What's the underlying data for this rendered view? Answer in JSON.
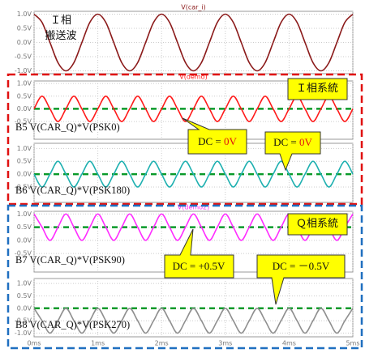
{
  "chart_data": [
    {
      "type": "line",
      "title": "V(car_i)",
      "x": [
        0,
        0.125,
        0.25,
        0.375,
        0.5,
        0.625,
        0.75,
        0.875,
        1,
        1.125,
        1.25,
        1.375,
        1.5,
        1.625,
        1.75,
        1.875,
        2,
        2.125,
        2.25,
        2.375,
        2.5,
        2.625,
        2.75,
        2.875,
        3,
        3.125,
        3.25,
        3.375,
        3.5,
        3.625,
        3.75,
        3.875,
        4,
        4.125,
        4.25,
        4.375,
        4.5,
        4.625,
        4.75,
        4.875,
        5
      ],
      "series": [
        {
          "color": "#8b1a1a",
          "values": [
            1,
            0.71,
            0,
            -0.71,
            -1,
            -0.71,
            0,
            0.71,
            1,
            0.71,
            0,
            -0.71,
            -1,
            -0.71,
            0,
            0.71,
            1,
            0.71,
            0,
            -0.71,
            -1,
            -0.71,
            0,
            0.71,
            1,
            0.71,
            0,
            -0.71,
            -1,
            -0.71,
            0,
            0.71,
            1,
            0.71,
            0,
            -0.71,
            -1,
            -0.71,
            0,
            0.71,
            1
          ]
        }
      ],
      "xlim": [
        0,
        5
      ],
      "ylim": [
        -1.1,
        1.1
      ],
      "yticks": [
        {
          "value": 1,
          "label": "1.0V"
        },
        {
          "value": 0.5,
          "label": "0.5V"
        },
        {
          "value": 0,
          "label": "0.0V"
        },
        {
          "value": -0.5,
          "label": "-0.5V"
        },
        {
          "value": -1,
          "label": "-1.0V"
        }
      ],
      "grid": true
    },
    {
      "type": "line",
      "title": "V(demo)",
      "x": [
        0,
        0.125,
        0.25,
        0.375,
        0.5,
        0.625,
        0.75,
        0.875,
        1,
        1.125,
        1.25,
        1.375,
        1.5,
        1.625,
        1.75,
        1.875,
        2,
        2.125,
        2.25,
        2.375,
        2.5,
        2.625,
        2.75,
        2.875,
        3,
        3.125,
        3.25,
        3.375,
        3.5,
        3.625,
        3.75,
        3.875,
        4,
        4.125,
        4.25,
        4.375,
        4.5,
        4.625,
        4.75,
        4.875,
        5
      ],
      "series": [
        {
          "name": "B5 V(CAR_Q)*V(PSK0)",
          "color": "#ff1a1a",
          "values": [
            0,
            0.5,
            0,
            -0.5,
            0,
            0.5,
            0,
            -0.5,
            0,
            0.5,
            0,
            -0.5,
            0,
            0.5,
            0,
            -0.5,
            0,
            0.5,
            0,
            -0.5,
            0,
            0.5,
            0,
            -0.5,
            0,
            0.5,
            0,
            -0.5,
            0,
            0.5,
            0,
            -0.5,
            0,
            0.5,
            0,
            -0.5,
            0,
            0.5,
            0,
            -0.5,
            0
          ]
        }
      ],
      "xlim": [
        0,
        5
      ],
      "ylim": [
        -1.2,
        1.1
      ],
      "yticks": [
        {
          "value": 1,
          "label": "1.0V"
        },
        {
          "value": 0.5,
          "label": "0.5V"
        },
        {
          "value": 0,
          "label": "0.0V"
        },
        {
          "value": -0.5,
          "label": "-0.5V"
        }
      ],
      "grid": true,
      "reference_line": {
        "value": 0,
        "color": "#0a9a2a"
      }
    },
    {
      "type": "line",
      "x": [
        0,
        0.125,
        0.25,
        0.375,
        0.5,
        0.625,
        0.75,
        0.875,
        1,
        1.125,
        1.25,
        1.375,
        1.5,
        1.625,
        1.75,
        1.875,
        2,
        2.125,
        2.25,
        2.375,
        2.5,
        2.625,
        2.75,
        2.875,
        3,
        3.125,
        3.25,
        3.375,
        3.5,
        3.625,
        3.75,
        3.875,
        4,
        4.125,
        4.25,
        4.375,
        4.5,
        4.625,
        4.75,
        4.875,
        5
      ],
      "series": [
        {
          "name": "B6 V(CAR_Q)*V(PSK180)",
          "color": "#1fb0b0",
          "values": [
            0,
            -0.5,
            0,
            0.5,
            0,
            -0.5,
            0,
            0.5,
            0,
            -0.5,
            0,
            0.5,
            0,
            -0.5,
            0,
            0.5,
            0,
            -0.5,
            0,
            0.5,
            0,
            -0.5,
            0,
            0.5,
            0,
            -0.5,
            0,
            0.5,
            0,
            -0.5,
            0,
            0.5,
            0,
            -0.5,
            0,
            0.5,
            0,
            -0.5,
            0,
            0.5,
            0
          ]
        }
      ],
      "xlim": [
        0,
        5
      ],
      "ylim": [
        -1.1,
        1.2
      ],
      "yticks": [
        {
          "value": 1,
          "label": "1.0V"
        },
        {
          "value": 0.5,
          "label": "0.5V"
        },
        {
          "value": 0,
          "label": "0.0V"
        },
        {
          "value": -0.5,
          "label": "-0.5V"
        }
      ],
      "grid": true,
      "reference_line": {
        "value": 0,
        "color": "#0a9a2a"
      }
    },
    {
      "type": "line",
      "title": "V(demo2)",
      "x": [
        0,
        0.125,
        0.25,
        0.375,
        0.5,
        0.625,
        0.75,
        0.875,
        1,
        1.125,
        1.25,
        1.375,
        1.5,
        1.625,
        1.75,
        1.875,
        2,
        2.125,
        2.25,
        2.375,
        2.5,
        2.625,
        2.75,
        2.875,
        3,
        3.125,
        3.25,
        3.375,
        3.5,
        3.625,
        3.75,
        3.875,
        4,
        4.125,
        4.25,
        4.375,
        4.5,
        4.625,
        4.75,
        4.875,
        5
      ],
      "series": [
        {
          "name": "B7 V(CAR_Q)*V(PSK90)",
          "color": "#ff2cff",
          "values": [
            1,
            0.5,
            0,
            0.5,
            1,
            0.5,
            0,
            0.5,
            1,
            0.5,
            0,
            0.5,
            1,
            0.5,
            0,
            0.5,
            1,
            0.5,
            0,
            0.5,
            1,
            0.5,
            0,
            0.5,
            1,
            0.5,
            0,
            0.5,
            1,
            0.5,
            0,
            0.5,
            1,
            0.5,
            0,
            0.5,
            1,
            0.5,
            0,
            0.5,
            1
          ]
        }
      ],
      "xlim": [
        0,
        5
      ],
      "ylim": [
        -1.2,
        1.1
      ],
      "yticks": [
        {
          "value": 1,
          "label": "1.0V"
        },
        {
          "value": 0.5,
          "label": "0.5V"
        },
        {
          "value": 0,
          "label": "0.0V"
        },
        {
          "value": -0.5,
          "label": "-0.5V"
        }
      ],
      "grid": true,
      "reference_line": {
        "value": 0.5,
        "color": "#0a9a2a"
      }
    },
    {
      "type": "line",
      "x": [
        0,
        0.125,
        0.25,
        0.375,
        0.5,
        0.625,
        0.75,
        0.875,
        1,
        1.125,
        1.25,
        1.375,
        1.5,
        1.625,
        1.75,
        1.875,
        2,
        2.125,
        2.25,
        2.375,
        2.5,
        2.625,
        2.75,
        2.875,
        3,
        3.125,
        3.25,
        3.375,
        3.5,
        3.625,
        3.75,
        3.875,
        4,
        4.125,
        4.25,
        4.375,
        4.5,
        4.625,
        4.75,
        4.875,
        5
      ],
      "series": [
        {
          "name": "B8 V(CAR_Q)*V(PSK270)",
          "color": "#8f8f8f",
          "values": [
            0,
            -0.5,
            -1,
            -0.5,
            0,
            -0.5,
            -1,
            -0.5,
            0,
            -0.5,
            -1,
            -0.5,
            0,
            -0.5,
            -1,
            -0.5,
            0,
            -0.5,
            -1,
            -0.5,
            0,
            -0.5,
            -1,
            -0.5,
            0,
            -0.5,
            -1,
            -0.5,
            0,
            -0.5,
            -1,
            -0.5,
            0,
            -0.5,
            -1,
            -0.5,
            0,
            -0.5,
            -1,
            -0.5,
            0
          ]
        }
      ],
      "xlim": [
        0,
        5
      ],
      "ylim": [
        -1.15,
        1.2
      ],
      "xticks": [
        {
          "value": 0,
          "label": "0ms"
        },
        {
          "value": 1,
          "label": "1ms"
        },
        {
          "value": 2,
          "label": "2ms"
        },
        {
          "value": 3,
          "label": "3ms"
        },
        {
          "value": 4,
          "label": "4ms"
        },
        {
          "value": 5,
          "label": "5ms"
        }
      ],
      "yticks": [
        {
          "value": 1,
          "label": "1.0V"
        },
        {
          "value": 0.5,
          "label": "0.5V"
        },
        {
          "value": 0,
          "label": "0.0V"
        },
        {
          "value": -0.5,
          "label": "-0.5V"
        },
        {
          "value": -1,
          "label": "-1.0V"
        }
      ],
      "grid": true,
      "reference_line": {
        "value": 0,
        "color": "#0a9a2a"
      }
    }
  ],
  "annotations": {
    "carrier": [
      "Ｉ相",
      "搬送波"
    ],
    "i_group": "Ｉ相系統",
    "q_group": "Ｑ相系統",
    "dc_b5": {
      "prefix": "DC = ",
      "value": "0V"
    },
    "dc_b6": {
      "prefix": "DC = ",
      "value": "0V"
    },
    "dc_b7": "DC = +0.5V",
    "dc_b8": "DC = －0.5V"
  }
}
